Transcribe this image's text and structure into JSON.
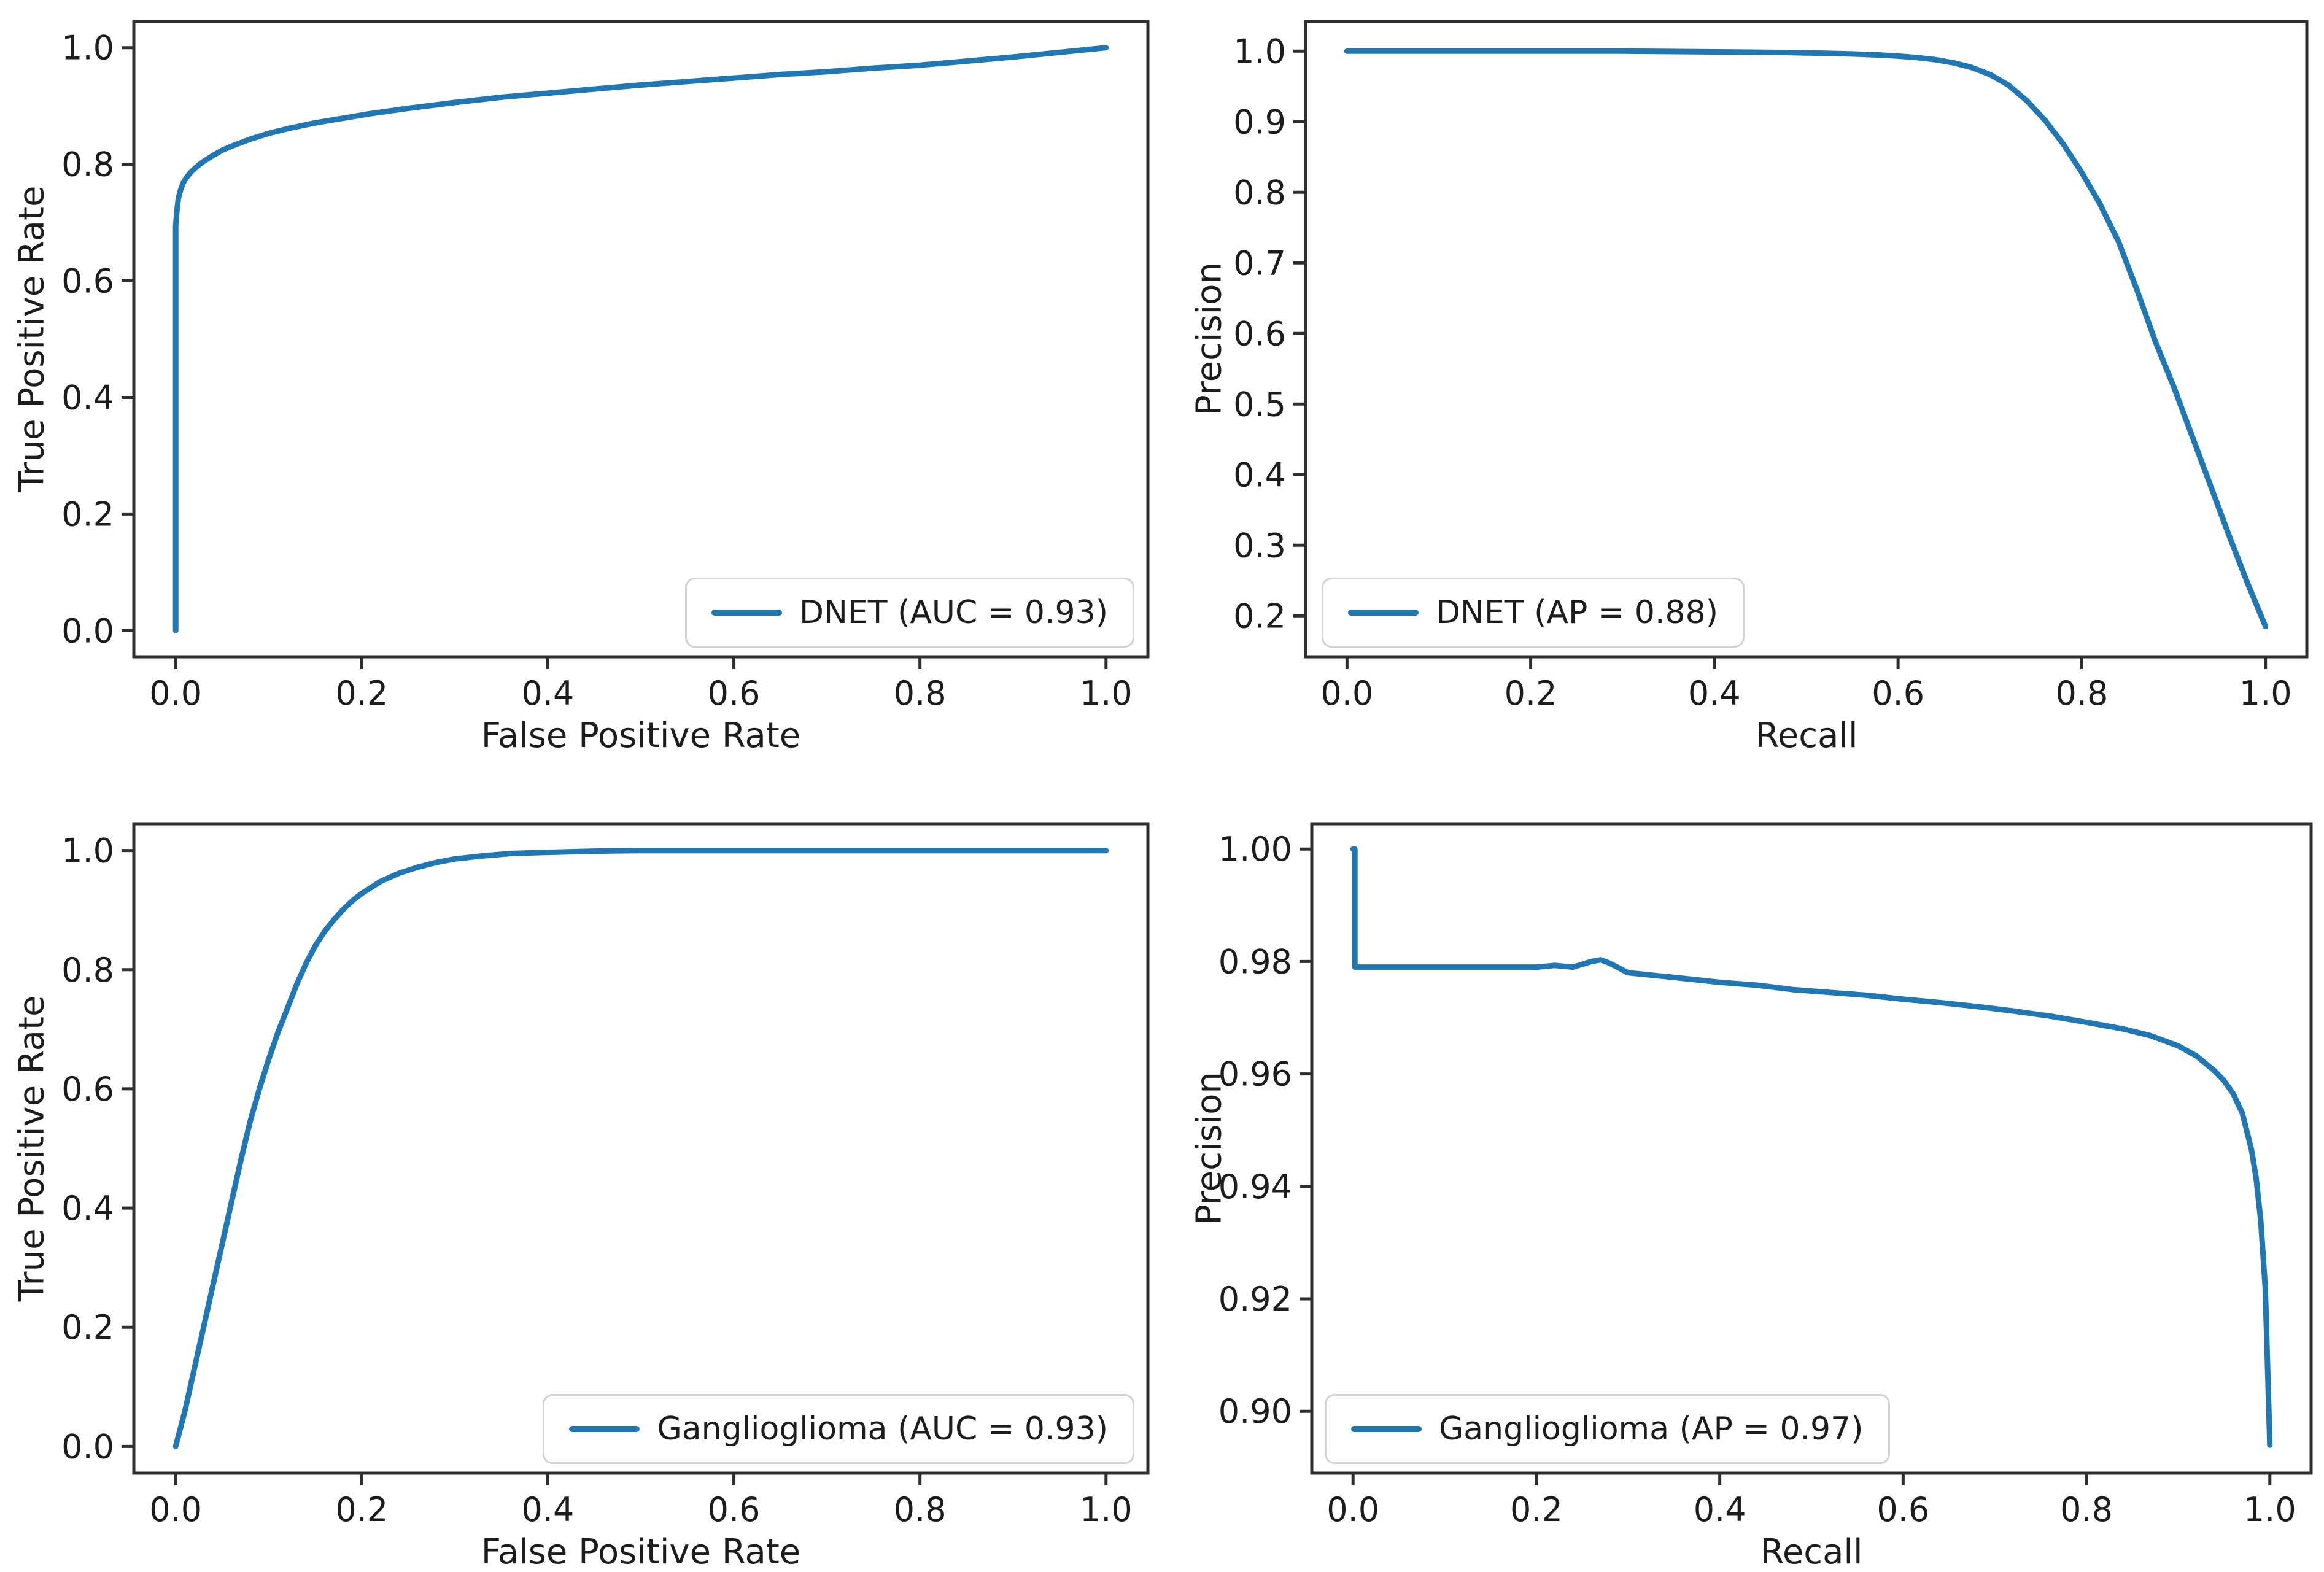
{
  "figure": {
    "background": "#ffffff",
    "line_color": "#1f77b4",
    "axis_color": "#2e2e2e",
    "text_color": "#1c1c1c",
    "legend_border_color": "#d2d2d2"
  },
  "chart_data": [
    {
      "id": "roc-dnet",
      "type": "line",
      "title": "",
      "xlabel": "False Positive Rate",
      "ylabel": "True Positive Rate",
      "xlim": [
        -0.045,
        1.045
      ],
      "ylim": [
        -0.045,
        1.045
      ],
      "grid": false,
      "legend": {
        "position": "lower right",
        "label": "DNET (AUC = 0.93)"
      },
      "xticks": [
        0.0,
        0.2,
        0.4,
        0.6,
        0.8,
        1.0
      ],
      "xtick_labels": [
        "0.0",
        "0.2",
        "0.4",
        "0.6",
        "0.8",
        "1.0"
      ],
      "yticks": [
        0.0,
        0.2,
        0.4,
        0.6,
        0.8,
        1.0
      ],
      "ytick_labels": [
        "0.0",
        "0.2",
        "0.4",
        "0.6",
        "0.8",
        "1.0"
      ],
      "series": [
        {
          "name": "DNET (AUC = 0.93)",
          "metric": "AUC",
          "metric_value": 0.93,
          "x": [
            0.0,
            0.0,
            0.001,
            0.002,
            0.003,
            0.005,
            0.008,
            0.012,
            0.016,
            0.02,
            0.025,
            0.03,
            0.04,
            0.05,
            0.06,
            0.08,
            0.1,
            0.12,
            0.15,
            0.18,
            0.21,
            0.25,
            0.3,
            0.35,
            0.4,
            0.45,
            0.5,
            0.55,
            0.6,
            0.65,
            0.7,
            0.75,
            0.8,
            0.85,
            0.9,
            0.95,
            1.0
          ],
          "y": [
            0.0,
            0.695,
            0.715,
            0.73,
            0.742,
            0.755,
            0.768,
            0.778,
            0.786,
            0.792,
            0.799,
            0.805,
            0.815,
            0.824,
            0.831,
            0.843,
            0.853,
            0.861,
            0.871,
            0.879,
            0.887,
            0.896,
            0.906,
            0.915,
            0.922,
            0.929,
            0.936,
            0.942,
            0.948,
            0.954,
            0.959,
            0.965,
            0.97,
            0.977,
            0.984,
            0.992,
            1.0
          ]
        }
      ]
    },
    {
      "id": "pr-dnet",
      "type": "line",
      "title": "",
      "xlabel": "Recall",
      "ylabel": "Precision",
      "xlim": [
        -0.045,
        1.045
      ],
      "ylim": [
        0.142,
        1.042
      ],
      "grid": false,
      "legend": {
        "position": "lower left",
        "label": "DNET (AP = 0.88)"
      },
      "xticks": [
        0.0,
        0.2,
        0.4,
        0.6,
        0.8,
        1.0
      ],
      "xtick_labels": [
        "0.0",
        "0.2",
        "0.4",
        "0.6",
        "0.8",
        "1.0"
      ],
      "yticks": [
        0.2,
        0.3,
        0.4,
        0.5,
        0.6,
        0.7,
        0.8,
        0.9,
        1.0
      ],
      "ytick_labels": [
        "0.2",
        "0.3",
        "0.4",
        "0.5",
        "0.6",
        "0.7",
        "0.8",
        "0.9",
        "1.0"
      ],
      "series": [
        {
          "name": "DNET (AP = 0.88)",
          "metric": "AP",
          "metric_value": 0.88,
          "x": [
            0.0,
            0.05,
            0.1,
            0.15,
            0.2,
            0.25,
            0.3,
            0.35,
            0.4,
            0.44,
            0.48,
            0.5,
            0.52,
            0.55,
            0.58,
            0.6,
            0.62,
            0.64,
            0.66,
            0.68,
            0.7,
            0.72,
            0.74,
            0.76,
            0.78,
            0.8,
            0.82,
            0.84,
            0.86,
            0.88,
            0.9,
            0.92,
            0.94,
            0.96,
            0.98,
            1.0
          ],
          "y": [
            1.0,
            1.0,
            1.0,
            1.0,
            1.0,
            1.0,
            1.0,
            0.9995,
            0.999,
            0.9985,
            0.998,
            0.9975,
            0.997,
            0.996,
            0.9945,
            0.993,
            0.991,
            0.988,
            0.9835,
            0.977,
            0.967,
            0.952,
            0.93,
            0.902,
            0.868,
            0.828,
            0.783,
            0.73,
            0.662,
            0.589,
            0.525,
            0.455,
            0.385,
            0.315,
            0.248,
            0.185
          ]
        }
      ]
    },
    {
      "id": "roc-ganglioglioma",
      "type": "line",
      "title": "",
      "xlabel": "False Positive Rate",
      "ylabel": "True Positive Rate",
      "xlim": [
        -0.045,
        1.045
      ],
      "ylim": [
        -0.045,
        1.045
      ],
      "grid": false,
      "legend": {
        "position": "lower right",
        "label": "Ganglioglioma (AUC = 0.93)"
      },
      "xticks": [
        0.0,
        0.2,
        0.4,
        0.6,
        0.8,
        1.0
      ],
      "xtick_labels": [
        "0.0",
        "0.2",
        "0.4",
        "0.6",
        "0.8",
        "1.0"
      ],
      "yticks": [
        0.0,
        0.2,
        0.4,
        0.6,
        0.8,
        1.0
      ],
      "ytick_labels": [
        "0.0",
        "0.2",
        "0.4",
        "0.6",
        "0.8",
        "1.0"
      ],
      "series": [
        {
          "name": "Ganglioglioma (AUC = 0.93)",
          "metric": "AUC",
          "metric_value": 0.93,
          "x": [
            0.0,
            0.01,
            0.02,
            0.03,
            0.04,
            0.05,
            0.06,
            0.07,
            0.08,
            0.09,
            0.1,
            0.11,
            0.12,
            0.13,
            0.14,
            0.15,
            0.16,
            0.17,
            0.18,
            0.19,
            0.2,
            0.22,
            0.24,
            0.26,
            0.28,
            0.3,
            0.33,
            0.36,
            0.4,
            0.45,
            0.5,
            0.6,
            0.7,
            0.8,
            0.9,
            1.0
          ],
          "y": [
            0.0,
            0.06,
            0.13,
            0.2,
            0.27,
            0.34,
            0.41,
            0.48,
            0.545,
            0.6,
            0.65,
            0.695,
            0.735,
            0.775,
            0.81,
            0.84,
            0.864,
            0.884,
            0.901,
            0.916,
            0.928,
            0.948,
            0.962,
            0.972,
            0.98,
            0.986,
            0.991,
            0.995,
            0.997,
            0.999,
            1.0,
            1.0,
            1.0,
            1.0,
            1.0,
            1.0
          ]
        }
      ]
    },
    {
      "id": "pr-ganglioglioma",
      "type": "line",
      "title": "",
      "xlabel": "Recall",
      "ylabel": "Precision",
      "xlim": [
        -0.045,
        1.045
      ],
      "ylim": [
        0.889,
        1.0045
      ],
      "grid": false,
      "legend": {
        "position": "lower left",
        "label": "Ganglioglioma (AP = 0.97)"
      },
      "xticks": [
        0.0,
        0.2,
        0.4,
        0.6,
        0.8,
        1.0
      ],
      "xtick_labels": [
        "0.0",
        "0.2",
        "0.4",
        "0.6",
        "0.8",
        "1.0"
      ],
      "yticks": [
        0.9,
        0.92,
        0.94,
        0.96,
        0.98,
        1.0
      ],
      "ytick_labels": [
        "0.90",
        "0.92",
        "0.94",
        "0.96",
        "0.98",
        "1.00"
      ],
      "series": [
        {
          "name": "Ganglioglioma (AP = 0.97)",
          "metric": "AP",
          "metric_value": 0.97,
          "x": [
            0.0,
            0.002,
            0.002,
            0.05,
            0.1,
            0.15,
            0.2,
            0.22,
            0.24,
            0.25,
            0.26,
            0.27,
            0.28,
            0.3,
            0.33,
            0.36,
            0.4,
            0.44,
            0.48,
            0.52,
            0.56,
            0.6,
            0.64,
            0.68,
            0.72,
            0.76,
            0.8,
            0.84,
            0.87,
            0.9,
            0.92,
            0.94,
            0.95,
            0.96,
            0.97,
            0.98,
            0.985,
            0.99,
            0.995,
            1.0
          ],
          "y": [
            1.0,
            1.0,
            0.979,
            0.979,
            0.979,
            0.979,
            0.979,
            0.9793,
            0.979,
            0.9795,
            0.98,
            0.9803,
            0.9797,
            0.978,
            0.9775,
            0.977,
            0.9763,
            0.9758,
            0.975,
            0.9745,
            0.974,
            0.9733,
            0.9727,
            0.972,
            0.9712,
            0.9703,
            0.9692,
            0.968,
            0.9668,
            0.965,
            0.9632,
            0.9605,
            0.9588,
            0.9565,
            0.953,
            0.9465,
            0.9415,
            0.934,
            0.922,
            0.894
          ]
        }
      ]
    }
  ]
}
